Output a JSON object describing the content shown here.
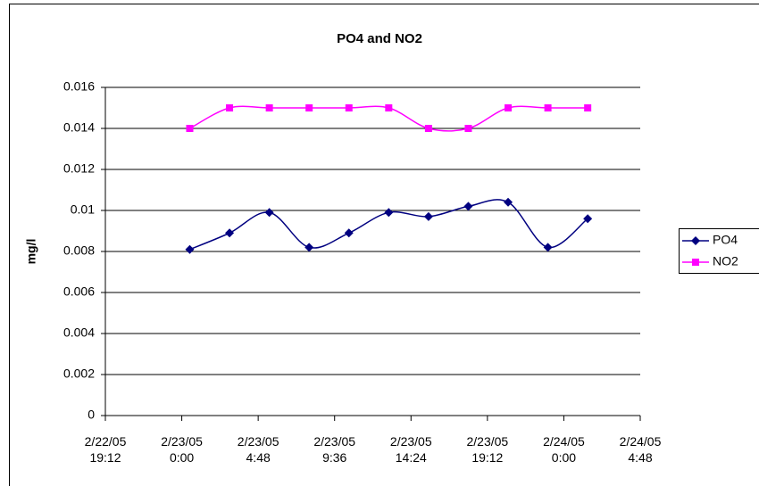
{
  "chart_data": {
    "type": "line",
    "title": "PO4 and NO2",
    "y_label": "mg/l",
    "x": [
      "2/23/05 0:30",
      "2/23/05 3:00",
      "2/23/05 5:30",
      "2/23/05 8:00",
      "2/23/05 10:30",
      "2/23/05 13:00",
      "2/23/05 15:30",
      "2/23/05 18:00",
      "2/23/05 20:30",
      "2/23/05 23:00",
      "2/24/05 1:30"
    ],
    "series": [
      {
        "name": "PO4",
        "color": "#000080",
        "marker": "diamond",
        "values": [
          0.0081,
          0.0089,
          0.0099,
          0.0082,
          0.0089,
          0.0099,
          0.0097,
          0.0102,
          0.0104,
          0.0082,
          0.0096
        ]
      },
      {
        "name": "NO2",
        "color": "#ff00ff",
        "marker": "square",
        "values": [
          0.014,
          0.015,
          0.015,
          0.015,
          0.015,
          0.015,
          0.014,
          0.014,
          0.015,
          0.015,
          0.015
        ]
      }
    ],
    "smooth": true,
    "xlim": [
      "2/22/05 19:12",
      "2/24/05 4:48"
    ],
    "xticks": [
      "2/22/05 19:12",
      "2/23/05 0:00",
      "2/23/05 4:48",
      "2/23/05 9:36",
      "2/23/05 14:24",
      "2/23/05 19:12",
      "2/24/05 0:00",
      "2/24/05 4:48"
    ],
    "ylim": [
      0,
      0.016
    ],
    "yticks": [
      0,
      0.002,
      0.004,
      0.006,
      0.008,
      0.01,
      0.012,
      0.014,
      0.016
    ],
    "grid": true,
    "legend": "right"
  }
}
